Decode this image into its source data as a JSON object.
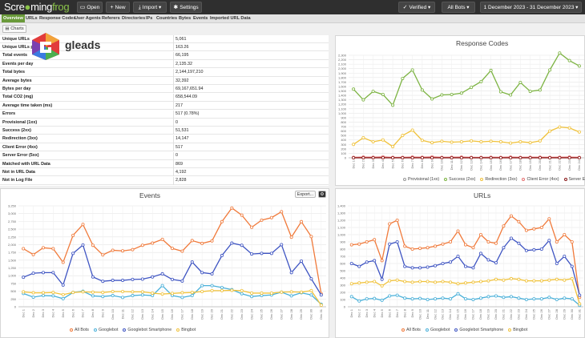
{
  "app": {
    "logo_text_a": "Scre",
    "logo_text_b": "ming",
    "logo_text_c": "frog"
  },
  "toolbar": {
    "open": "Open",
    "new": "New",
    "import": "Import",
    "settings": "Settings",
    "verified": "Verified",
    "bots": "All Bots",
    "date_range": "1 December 2023 - 31 December 2023"
  },
  "tabs": [
    "Overview",
    "URLs",
    "Response Codes",
    "User Agents",
    "Referers",
    "Directories",
    "IPs",
    "Countries",
    "Bytes",
    "Events",
    "Imported URL Data"
  ],
  "charts_button": "Charts",
  "overlay_logo": {
    "text": "gleads"
  },
  "stats": [
    {
      "label": "Unique URLs",
      "value": "5,061"
    },
    {
      "label": "Unique URLs per day",
      "value": "163.26"
    },
    {
      "label": "Total events",
      "value": "66,195"
    },
    {
      "label": "Events per day",
      "value": "2,135.32"
    },
    {
      "label": "Total bytes",
      "value": "2,144,197,210"
    },
    {
      "label": "Average bytes",
      "value": "32,392"
    },
    {
      "label": "Bytes per day",
      "value": "69,167,651.94"
    },
    {
      "label": "Total CO2 (mg)",
      "value": "658,544.09"
    },
    {
      "label": "Average time taken (ms)",
      "value": "217"
    },
    {
      "label": "Errors",
      "value": "517 (0.78%)"
    },
    {
      "label": "Provisional (1xx)",
      "value": "0"
    },
    {
      "label": "Success (2xx)",
      "value": "51,531"
    },
    {
      "label": "Redirection (3xx)",
      "value": "14,147"
    },
    {
      "label": "Client Error (4xx)",
      "value": "517"
    },
    {
      "label": "Server Error (5xx)",
      "value": "0"
    },
    {
      "label": "Matched with URL Data",
      "value": "869"
    },
    {
      "label": "Not in URL Data",
      "value": "4,192"
    },
    {
      "label": "Not in Log File",
      "value": "2,828"
    }
  ],
  "export_label": "Export...",
  "chart_data": [
    {
      "type": "line",
      "title": "Response Codes",
      "x": [
        "Dec 1",
        "Dec 2",
        "Dec 3",
        "Dec 4",
        "Dec 5",
        "Dec 6",
        "Dec 7",
        "Dec 8",
        "Dec 9",
        "Dec 10",
        "Dec 11",
        "Dec 12",
        "Dec 13",
        "Dec 14",
        "Dec 15",
        "Dec 16",
        "Dec 17",
        "Dec 18",
        "Dec 19",
        "Dec 20",
        "Dec 21",
        "Dec 22",
        "Dec 23",
        "Dec 24"
      ],
      "y_ticks": [
        "0",
        "100",
        "200",
        "300",
        "400",
        "500",
        "600",
        "700",
        "800",
        "900",
        "1,000",
        "1,100",
        "1,200",
        "1,300",
        "1,400",
        "1,500",
        "1,600",
        "1,700",
        "1,800",
        "1,900",
        "2,000",
        "2,100",
        "2,200",
        "2,300"
      ],
      "ylim": [
        0,
        2300
      ],
      "series": [
        {
          "name": "Provisional (1xx)",
          "color": "#999999",
          "values": [
            0,
            0,
            0,
            0,
            0,
            0,
            0,
            0,
            0,
            0,
            0,
            0,
            0,
            0,
            0,
            0,
            0,
            0,
            0,
            0,
            0,
            0,
            0,
            0
          ]
        },
        {
          "name": "Success (2xx)",
          "color": "#7cb342",
          "values": [
            1540,
            1300,
            1490,
            1420,
            1180,
            1780,
            1970,
            1520,
            1320,
            1410,
            1420,
            1450,
            1580,
            1710,
            1960,
            1480,
            1410,
            1690,
            1490,
            1520,
            1970,
            2350,
            2180,
            2060
          ]
        },
        {
          "name": "Redirection (3xx)",
          "color": "#f0c23b",
          "values": [
            300,
            450,
            360,
            400,
            250,
            500,
            620,
            390,
            340,
            370,
            350,
            360,
            380,
            360,
            370,
            360,
            330,
            360,
            340,
            380,
            600,
            690,
            670,
            580
          ]
        },
        {
          "name": "Client Error (4xx)",
          "color": "#e57373",
          "values": [
            10,
            15,
            12,
            20,
            8,
            10,
            15,
            12,
            20,
            10,
            12,
            15,
            10,
            8,
            12,
            10,
            15,
            10,
            12,
            14,
            10,
            12,
            15,
            10
          ]
        },
        {
          "name": "Server Error (5xx)",
          "color": "#8b1a1a",
          "values": [
            0,
            0,
            0,
            0,
            0,
            0,
            0,
            0,
            0,
            0,
            0,
            0,
            0,
            0,
            0,
            0,
            0,
            0,
            0,
            0,
            0,
            0,
            0,
            0
          ]
        }
      ]
    },
    {
      "type": "line",
      "title": "Events",
      "x": [
        "Dec 1",
        "Dec 2",
        "Dec 3",
        "Dec 4",
        "Dec 5",
        "Dec 6",
        "Dec 7",
        "Dec 8",
        "Dec 9",
        "Dec 10",
        "Dec 11",
        "Dec 12",
        "Dec 13",
        "Dec 14",
        "Dec 15",
        "Dec 16",
        "Dec 17",
        "Dec 18",
        "Dec 19",
        "Dec 20",
        "Dec 21",
        "Dec 22",
        "Dec 23",
        "Dec 24",
        "Dec 25",
        "Dec 26",
        "Dec 27",
        "Dec 28",
        "Dec 29",
        "Dec 30",
        "Dec 31"
      ],
      "y_ticks": [
        "0",
        "250",
        "500",
        "750",
        "1,000",
        "1,250",
        "1,500",
        "1,750",
        "2,000",
        "2,250",
        "2,500",
        "2,750",
        "3,000",
        "3,250"
      ],
      "ylim": [
        0,
        3250
      ],
      "series": [
        {
          "name": "All Bots",
          "color": "#f07a3b",
          "values": [
            1870,
            1680,
            1900,
            1870,
            1430,
            2300,
            2650,
            1980,
            1670,
            1820,
            1800,
            1840,
            1980,
            2050,
            2170,
            1880,
            1790,
            2130,
            2040,
            2120,
            2740,
            3180,
            2950,
            2560,
            2790,
            2870,
            3060,
            2240,
            2740,
            2260,
            420
          ]
        },
        {
          "name": "Googlebot",
          "color": "#4ab0d9",
          "values": [
            430,
            310,
            360,
            350,
            260,
            460,
            500,
            350,
            330,
            360,
            300,
            360,
            380,
            360,
            680,
            360,
            300,
            360,
            680,
            680,
            620,
            550,
            420,
            330,
            360,
            380,
            470,
            350,
            450,
            380,
            80
          ]
        },
        {
          "name": "Googlebot Smartphone",
          "color": "#3e54c2",
          "values": [
            950,
            1080,
            1100,
            1100,
            700,
            1720,
            1990,
            960,
            820,
            850,
            850,
            880,
            890,
            960,
            1060,
            880,
            830,
            1440,
            1100,
            1060,
            1650,
            2050,
            1980,
            1700,
            1720,
            1720,
            2000,
            1100,
            1470,
            900,
            380
          ]
        },
        {
          "name": "Bingbot",
          "color": "#f0c23b",
          "values": [
            480,
            450,
            450,
            460,
            390,
            460,
            480,
            470,
            460,
            490,
            490,
            480,
            480,
            440,
            410,
            430,
            450,
            460,
            490,
            520,
            520,
            530,
            520,
            440,
            440,
            440,
            470,
            480,
            470,
            520,
            50
          ]
        }
      ]
    },
    {
      "type": "line",
      "title": "URLs",
      "x": [
        "Dec 1",
        "Dec 2",
        "Dec 3",
        "Dec 4",
        "Dec 5",
        "Dec 6",
        "Dec 7",
        "Dec 8",
        "Dec 9",
        "Dec 10",
        "Dec 11",
        "Dec 12",
        "Dec 13",
        "Dec 14",
        "Dec 15",
        "Dec 16",
        "Dec 17",
        "Dec 18",
        "Dec 19",
        "Dec 20",
        "Dec 21",
        "Dec 22",
        "Dec 23",
        "Dec 24",
        "Dec 25",
        "Dec 26",
        "Dec 27",
        "Dec 28",
        "Dec 29",
        "Dec 30",
        "Dec 31"
      ],
      "y_ticks": [
        "0",
        "100",
        "200",
        "300",
        "400",
        "500",
        "600",
        "700",
        "800",
        "900",
        "1,000",
        "1,100",
        "1,200",
        "1,300",
        "1,400"
      ],
      "ylim": [
        0,
        1400
      ],
      "series": [
        {
          "name": "All Bots",
          "color": "#f07a3b",
          "values": [
            860,
            870,
            900,
            930,
            640,
            1150,
            1200,
            840,
            800,
            810,
            820,
            840,
            870,
            900,
            1050,
            860,
            820,
            1000,
            900,
            880,
            1120,
            1260,
            1180,
            1060,
            1080,
            1100,
            1220,
            900,
            1000,
            900,
            130
          ]
        },
        {
          "name": "Googlebot",
          "color": "#4ab0d9",
          "values": [
            140,
            80,
            110,
            115,
            90,
            150,
            160,
            120,
            110,
            115,
            100,
            110,
            120,
            110,
            180,
            110,
            100,
            120,
            140,
            150,
            130,
            140,
            120,
            100,
            110,
            110,
            130,
            100,
            120,
            110,
            20
          ]
        },
        {
          "name": "Googlebot Smartphone",
          "color": "#3e54c2",
          "values": [
            600,
            560,
            620,
            640,
            380,
            870,
            900,
            560,
            540,
            540,
            550,
            570,
            600,
            620,
            700,
            560,
            540,
            740,
            650,
            610,
            820,
            950,
            880,
            780,
            790,
            800,
            920,
            600,
            700,
            560,
            160
          ]
        },
        {
          "name": "Bingbot",
          "color": "#f0c23b",
          "values": [
            320,
            330,
            340,
            350,
            290,
            360,
            370,
            350,
            340,
            350,
            350,
            340,
            350,
            340,
            320,
            330,
            340,
            350,
            360,
            380,
            370,
            390,
            380,
            360,
            360,
            360,
            370,
            380,
            370,
            390,
            40
          ]
        }
      ]
    }
  ]
}
